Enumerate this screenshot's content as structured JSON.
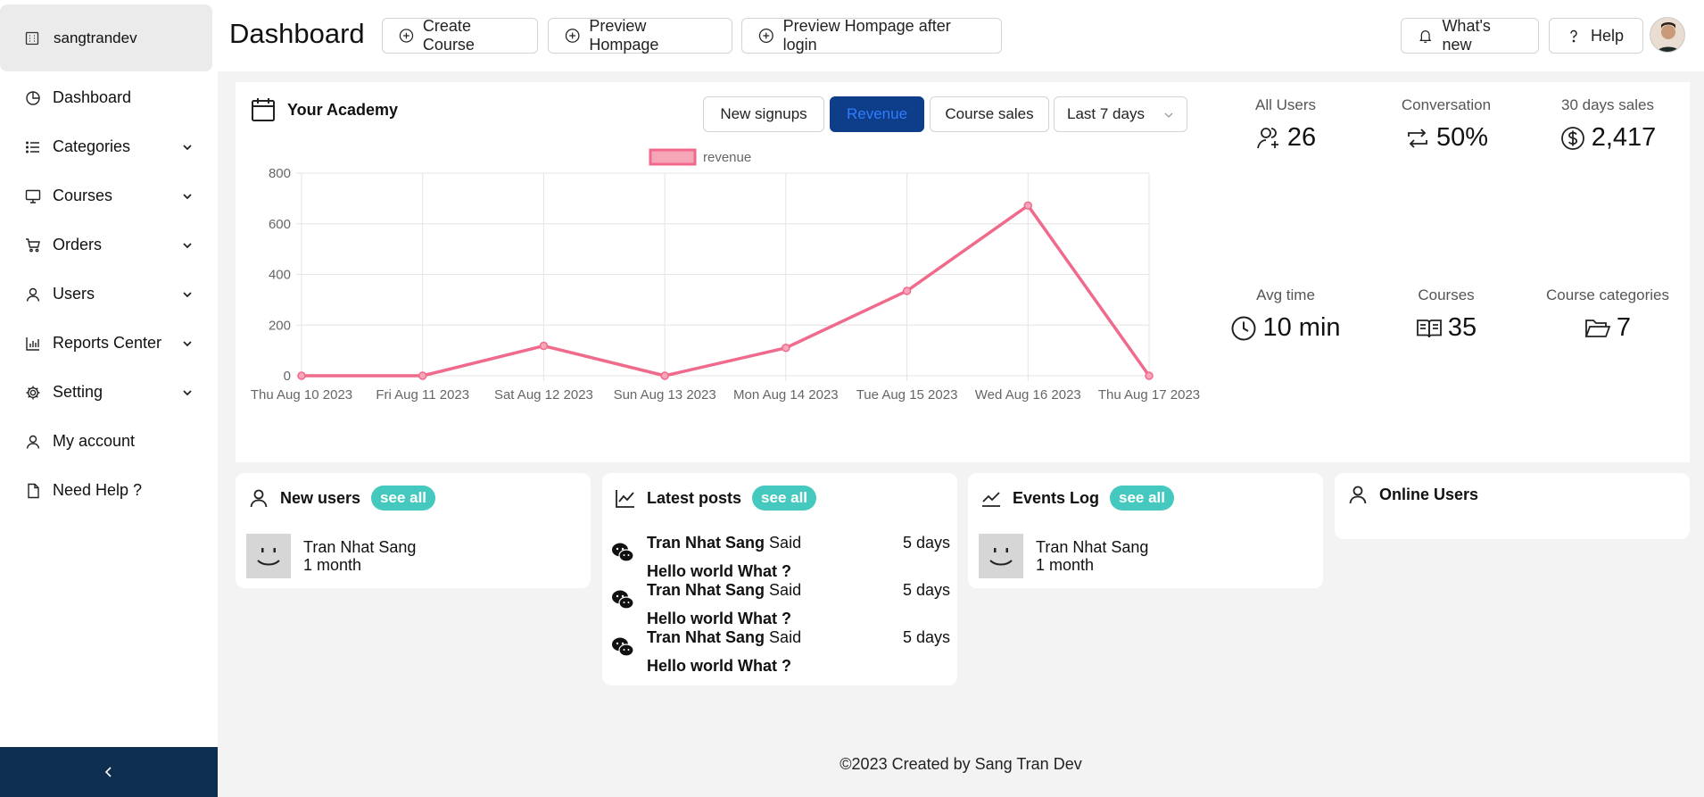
{
  "sidebar": {
    "brand": "sangtrandev",
    "items": [
      {
        "label": "Dashboard",
        "icon": "pie-chart-icon",
        "has_submenu": false
      },
      {
        "label": "Categories",
        "icon": "list-icon",
        "has_submenu": true
      },
      {
        "label": "Courses",
        "icon": "monitor-icon",
        "has_submenu": true
      },
      {
        "label": "Orders",
        "icon": "cart-icon",
        "has_submenu": true
      },
      {
        "label": "Users",
        "icon": "user-icon",
        "has_submenu": true
      },
      {
        "label": "Reports Center",
        "icon": "bar-chart-icon",
        "has_submenu": true
      },
      {
        "label": "Setting",
        "icon": "gear-icon",
        "has_submenu": true
      },
      {
        "label": "My account",
        "icon": "user-icon",
        "has_submenu": false
      },
      {
        "label": "Need Help ?",
        "icon": "file-icon",
        "has_submenu": false
      }
    ],
    "collapse_icon": "chevron-left-icon",
    "collapse_bg": "#0f2f50"
  },
  "header": {
    "title": "Dashboard",
    "create_course": "Create Course",
    "preview_homepage": "Preview Hompage",
    "preview_after_login": "Preview Hompage after login",
    "whats_new": "What's new",
    "help": "Help"
  },
  "academy": {
    "title": "Your Academy",
    "tabs": [
      "New signups",
      "Revenue",
      "Course sales"
    ],
    "active_tab": "Revenue",
    "range": "Last 7 days"
  },
  "chart_data": {
    "type": "line",
    "x": [
      "Thu Aug 10 2023",
      "Fri Aug 11 2023",
      "Sat Aug 12 2023",
      "Sun Aug 13 2023",
      "Mon Aug 14 2023",
      "Tue Aug 15 2023",
      "Wed Aug 16 2023",
      "Thu Aug 17 2023"
    ],
    "series": [
      {
        "name": "revenue",
        "values": [
          0,
          0,
          118,
          0,
          110,
          335,
          672,
          0
        ],
        "color": "#f06a8c"
      }
    ],
    "ylim": [
      0,
      800
    ],
    "yticks": [
      0,
      200,
      400,
      600,
      800
    ],
    "grid": true,
    "legend": "top-center"
  },
  "stats": [
    {
      "label": "All Users",
      "value": "26",
      "icon": "users-icon"
    },
    {
      "label": "Conversation",
      "value": "50%",
      "icon": "repeat-icon"
    },
    {
      "label": "30 days sales",
      "value": "2,417",
      "icon": "dollar-icon"
    },
    {
      "label": "Avg time",
      "value": "10 min",
      "icon": "clock-icon"
    },
    {
      "label": "Courses",
      "value": "35",
      "icon": "book-icon"
    },
    {
      "label": "Course categories",
      "value": "7",
      "icon": "folder-icon"
    }
  ],
  "new_users": {
    "title": "New users",
    "see_all": "see all",
    "items": [
      {
        "name": "Tran Nhat Sang",
        "time": "1 month"
      }
    ]
  },
  "latest_posts": {
    "title": "Latest posts",
    "see_all": "see all",
    "items": [
      {
        "author": "Tran Nhat Sang",
        "said": "Said",
        "time": "5 days",
        "message": "Hello world What ?"
      },
      {
        "author": "Tran Nhat Sang",
        "said": "Said",
        "time": "5 days",
        "message": "Hello world What ?"
      },
      {
        "author": "Tran Nhat Sang",
        "said": "Said",
        "time": "5 days",
        "message": "Hello world What ?"
      }
    ]
  },
  "events_log": {
    "title": "Events Log",
    "see_all": "see all",
    "items": [
      {
        "name": "Tran Nhat Sang",
        "time": "1 month"
      }
    ]
  },
  "online_users": {
    "title": "Online Users"
  },
  "footer": "©2023 Created by Sang Tran Dev",
  "colors": {
    "accent_pill": "#45c8bd",
    "active_tab": "#0e3d8a",
    "line": "#f06a8c"
  }
}
